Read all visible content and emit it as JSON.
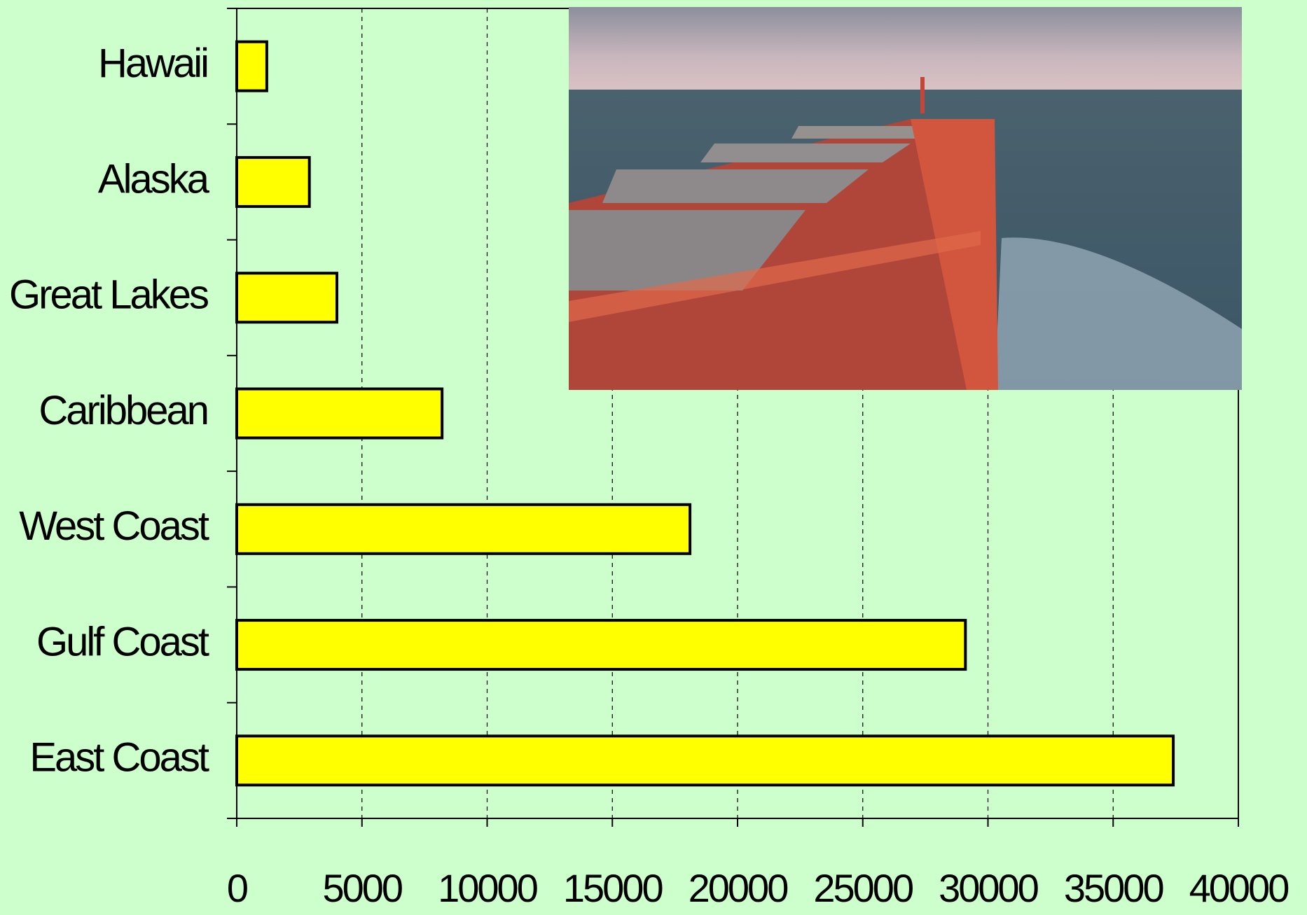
{
  "chart_data": {
    "type": "bar",
    "orientation": "horizontal",
    "categories": [
      "Hawaii",
      "Alaska",
      "Great Lakes",
      "Caribbean",
      "West Coast",
      "Gulf Coast",
      "East Coast"
    ],
    "values": [
      1200,
      2900,
      4000,
      8200,
      18100,
      29100,
      37400
    ],
    "color": "#ffff00",
    "xlim": [
      0,
      40000
    ],
    "xticks": [
      0,
      5000,
      10000,
      15000,
      20000,
      25000,
      30000,
      35000,
      40000
    ],
    "grid": true
  }
}
